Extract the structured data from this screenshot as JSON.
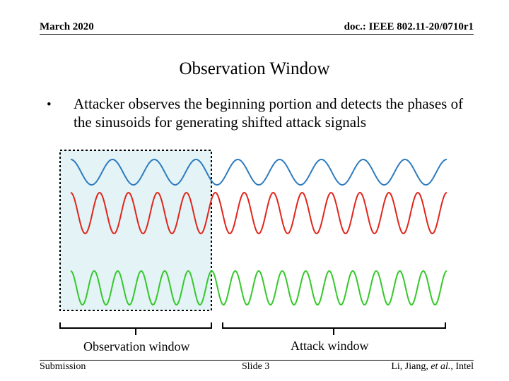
{
  "header": {
    "date": "March 2020",
    "doc_id": "doc.: IEEE 802.11-20/0710r1"
  },
  "slide": {
    "title": "Observation Window",
    "bullet_symbol": "•",
    "bullet_text": "Attacker observes the beginning portion and detects the phases of the sinusoids for generating shifted attack signals"
  },
  "figure": {
    "observation_label": "Observation window",
    "attack_label": "Attack window",
    "colors": {
      "blue": "#2e7bbf",
      "red": "#e0261c",
      "green": "#34c92a",
      "shade": "#e4f3f6",
      "border": "#000000"
    },
    "waves": [
      {
        "color": "blue",
        "cycles": 9
      },
      {
        "color": "red",
        "cycles": 13
      },
      {
        "color": "green",
        "cycles": 16
      }
    ]
  },
  "footer": {
    "left": "Submission",
    "center": "Slide 3",
    "right_authors": "Li, Jiang, ",
    "right_etal": "et al.",
    "right_org": ", Intel"
  }
}
